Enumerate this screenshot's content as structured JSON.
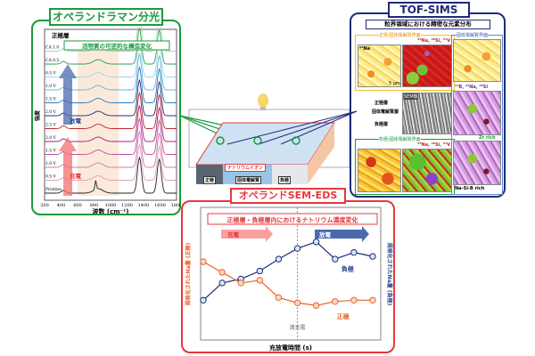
{
  "raman": {
    "title": "オペランドラマン分光",
    "layer_label": "正極層",
    "highlight": "活物質の可逆的な構造変化",
    "discharge_label": "放電",
    "charge_label": "充電",
    "ylabel": "強度",
    "xlabel": "波数 (cm⁻¹)",
    "colors": {
      "title": "#1a9a3c",
      "charge": "#e8383d",
      "discharge": "#2b4a8c"
    }
  },
  "chart_data": [
    {
      "type": "line",
      "title": "オペランドラマン分光",
      "xlabel": "波数 (cm⁻¹)",
      "ylabel": "強度",
      "xlim": [
        200,
        1800
      ],
      "xticks": [
        "200",
        "400",
        "600",
        "800",
        "1000",
        "1200",
        "1400",
        "1600",
        "1800"
      ],
      "peaks_cm": [
        1350,
        1590
      ],
      "series": [
        {
          "name": "Pristine",
          "color": "#222222"
        },
        {
          "name": "0.5 V",
          "color": "#d9a0c0"
        },
        {
          "name": "1.0 V",
          "color": "#d07aae"
        },
        {
          "name": "1.5 V",
          "color": "#c0509a"
        },
        {
          "name": "2.0 V",
          "color": "#a51e7a"
        },
        {
          "name": "2.5 V",
          "color": "#c0282e"
        },
        {
          "name": "2.0 V",
          "color": "#2c2a6e"
        },
        {
          "name": "1.5 V",
          "color": "#2a7fc0"
        },
        {
          "name": "1.0 V",
          "color": "#5fb5e0"
        },
        {
          "name": "0.5 V",
          "color": "#9fd4ec"
        },
        {
          "name": "CA 0.5",
          "color": "#2aa050"
        },
        {
          "name": "CA 1.0",
          "color": "#9fd7a8"
        }
      ]
    },
    {
      "type": "line",
      "title": "正極層・負極層内におけるナトリウム濃度変化",
      "xlabel": "充放電時間 (s)",
      "ylabel_left": "規格化されたNa量 (正極)",
      "ylabel_right": "規格化されたNa量 (負極)",
      "ylim": [
        0,
        100
      ],
      "x": [
        1,
        2,
        3,
        4,
        5,
        6,
        7,
        8,
        9,
        10
      ],
      "series": [
        {
          "name": "負極",
          "color": "#1f2a7a",
          "values": [
            30,
            43,
            46,
            52,
            61,
            69,
            74,
            61,
            66,
            63
          ]
        },
        {
          "name": "正極",
          "color": "#e8622a",
          "values": [
            59,
            51,
            43,
            45,
            32,
            28,
            26,
            29,
            30,
            30
          ]
        }
      ],
      "annotations": {
        "full_charge": "満充電",
        "charge": "充電",
        "discharge": "放電"
      }
    }
  ],
  "sem": {
    "title": "オペランドSEM-EDS",
    "subtitle": "正極層・負極層内におけるナトリウム濃度変化",
    "charge": "充電",
    "discharge": "放電",
    "full_charge": "満充電",
    "anode": "負極",
    "cathode": "正極",
    "ylabel_left": "規格化されたNa量 (正極)",
    "ylabel_right": "規格化されたNa量 (負極)",
    "xlabel": "充放電時間 (s)"
  },
  "cell": {
    "cathode": "正極",
    "electrolyte": "固体電解質",
    "anode": "負極",
    "ion": "ナトリウムイオン"
  },
  "tof": {
    "title": "TOF-SIMS",
    "subtitle": "粒界領域における精密な元素分布",
    "cathode_interface": "正極/固体電解質界面",
    "anode_interface": "負極/固体電解質界面",
    "electrolyte_interface": "固体電解質界面",
    "na": "²³Na",
    "na_si_v": "²³Na, ²⁸Si, ⁵¹V",
    "b_na_si": "¹¹B, ²³Na, ²⁸Si",
    "scale": "5 μm",
    "sem_image": "SEM像",
    "cathode_layer": "正極層",
    "electrolyte_layer": "固体電解質層",
    "anode_layer": "負極層",
    "zr_rich": "Zr rich",
    "na_si_b_rich": "Na-Si-B rich"
  }
}
